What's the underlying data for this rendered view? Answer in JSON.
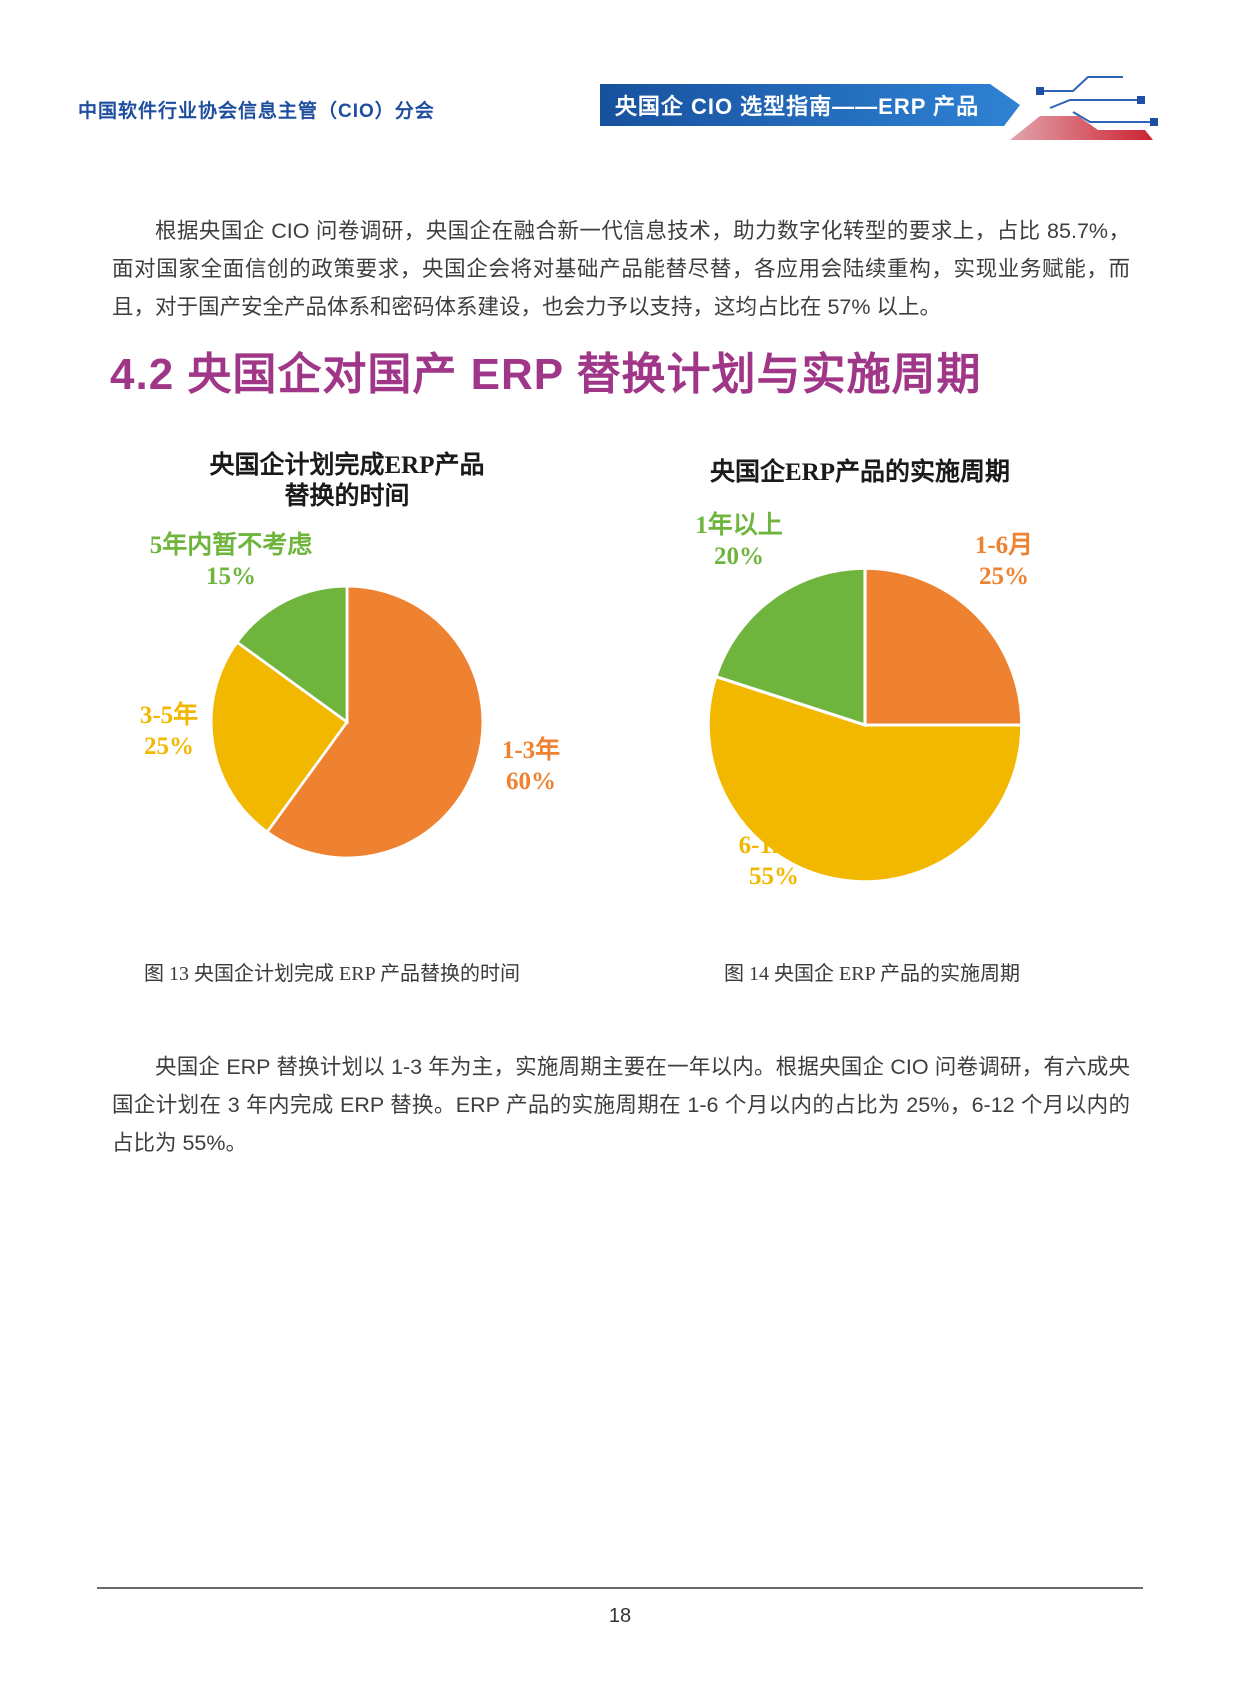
{
  "header": {
    "org": "中国软件行业协会信息主管（CIO）分会",
    "banner": "央国企 CIO 选型指南——ERP 产品",
    "banner_gradient": [
      "#17519E",
      "#2F82D4"
    ],
    "org_color": "#1F4E9F"
  },
  "intro_paragraph": "根据央国企 CIO 问卷调研，央国企在融合新一代信息技术，助力数字化转型的要求上，占比 85.7%，面对国家全面信创的政策要求，央国企会将对基础产品能替尽替，各应用会陆续重构，实现业务赋能，而且，对于国产安全产品体系和密码体系建设，也会力予以支持，这均占比在 57% 以上。",
  "section_title": "4.2 央国企对国产 ERP 替换计划与实施周期",
  "section_title_color": "#A03688",
  "chart_data": [
    {
      "type": "pie",
      "title": "央国企计划完成ERP产品替换的时间",
      "title_lines": [
        "央国企计划完成ERP产品",
        "替换的时间"
      ],
      "caption": "图 13 央国企计划完成 ERP 产品替换的时间",
      "start_angle": "top",
      "direction": "clockwise",
      "slices": [
        {
          "label": "1-3年",
          "value": 60,
          "pct_label": "60%",
          "color": "#EE8230"
        },
        {
          "label": "3-5年",
          "value": 25,
          "pct_label": "25%",
          "color": "#F2B800"
        },
        {
          "label": "5年内暂不考虑",
          "value": 15,
          "pct_label": "15%",
          "color": "#6FB53D"
        }
      ]
    },
    {
      "type": "pie",
      "title": "央国企ERP产品的实施周期",
      "title_lines": [
        "央国企ERP产品的实施周期"
      ],
      "caption": "图 14 央国企 ERP 产品的实施周期",
      "start_angle": "top",
      "direction": "clockwise",
      "slices": [
        {
          "label": "1-6月",
          "value": 25,
          "pct_label": "25%",
          "color": "#EE8230"
        },
        {
          "label": "6-12月",
          "value": 55,
          "pct_label": "55%",
          "color": "#F2B800"
        },
        {
          "label": "1年以上",
          "value": 20,
          "pct_label": "20%",
          "color": "#6FB53D"
        }
      ]
    }
  ],
  "closing_paragraph": "央国企 ERP 替换计划以 1-3 年为主，实施周期主要在一年以内。根据央国企 CIO 问卷调研，有六成央国企计划在 3 年内完成 ERP 替换。ERP 产品的实施周期在 1-6 个月以内的占比为 25%，6-12 个月以内的占比为 55%。",
  "footer": {
    "page_number": "18"
  }
}
